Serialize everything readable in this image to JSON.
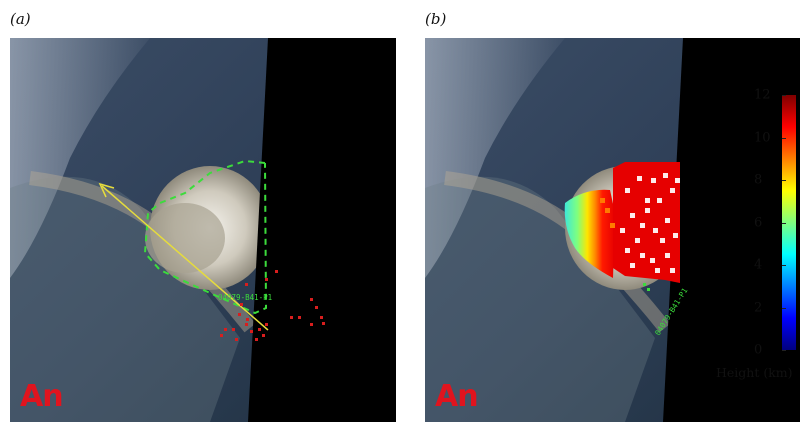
{
  "panels": [
    {
      "label": "(a)",
      "stamp": "An",
      "track_label": "04079-B41-P1"
    },
    {
      "label": "(b)",
      "stamp": "An",
      "track_label": "04079-B41-P1"
    }
  ],
  "colorbar": {
    "title": "Height (km)",
    "ticks": [
      "12",
      "10",
      "8",
      "6",
      "4",
      "2",
      "0"
    ],
    "range": [
      0,
      12
    ],
    "colors": [
      "#00007f",
      "#0000ff",
      "#007fff",
      "#00ffff",
      "#7fff7f",
      "#ffff00",
      "#ff7f00",
      "#ff0000",
      "#7f0000"
    ]
  },
  "colors": {
    "stamp": "#e0141e",
    "track": "#3cdc3c",
    "outline": "#3cdc3c",
    "arrow": "#e6dc3c",
    "markers": "#d81e1e",
    "ocean": "#2a3a52",
    "nodata": "#000000"
  }
}
